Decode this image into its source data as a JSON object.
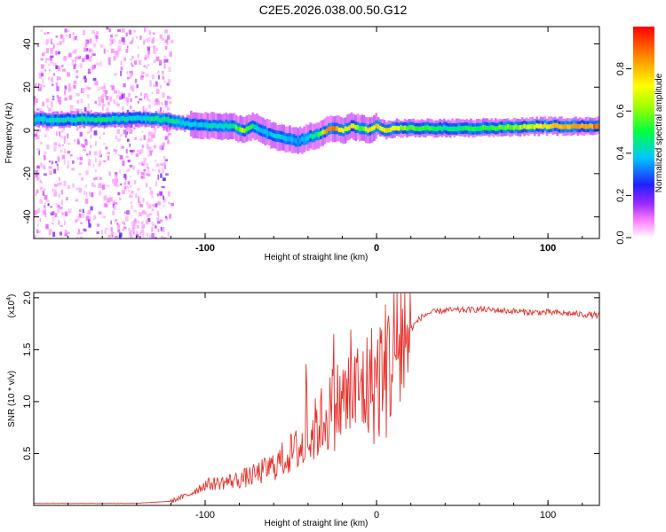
{
  "title": "C2E5.2026.038.00.50.G12",
  "chart_data": [
    {
      "type": "heatmap",
      "xlabel": "Height of straight line (km)",
      "ylabel": "Frequency (Hz)",
      "xlim": [
        -200,
        130
      ],
      "ylim": [
        -50,
        48
      ],
      "xticks": [
        -100,
        0,
        100
      ],
      "xtick_labels": [
        "-100",
        "0",
        "100"
      ],
      "yticks": [
        -40,
        -20,
        0,
        20,
        40
      ],
      "ytick_labels": [
        "-40",
        "-20",
        "0",
        "20",
        "40"
      ],
      "colorbar": {
        "label": "Normalized spectral amplitude",
        "range": [
          0,
          1
        ],
        "ticks": [
          0.0,
          0.2,
          0.4,
          0.6,
          0.8
        ],
        "tick_labels": [
          "0.0",
          "0.2",
          "0.4",
          "0.6",
          "0.8"
        ],
        "colors": [
          "#ffffff",
          "#ff80ff",
          "#8000ff",
          "#0000ff",
          "#00ffff",
          "#00ff00",
          "#ffff00",
          "#ff8000",
          "#ff0000"
        ]
      },
      "ridge": {
        "x": [
          -200,
          -180,
          -160,
          -140,
          -125,
          -110,
          -95,
          -85,
          -78,
          -72,
          -65,
          -58,
          -52,
          -46,
          -40,
          -35,
          -30,
          -25,
          -20,
          -15,
          -10,
          -5,
          0,
          5,
          10,
          20,
          40,
          60,
          80,
          100,
          130
        ],
        "freq": [
          5,
          5,
          5,
          5.5,
          5,
          3,
          2,
          2,
          0,
          2,
          -1,
          -3,
          -4,
          -5,
          -3,
          -2,
          0,
          1,
          0,
          2,
          1,
          0,
          2,
          0,
          1,
          1,
          1,
          1,
          1.5,
          2,
          2
        ],
        "amplitude": [
          0.45,
          0.45,
          0.5,
          0.45,
          0.5,
          0.4,
          0.45,
          0.5,
          0.7,
          0.45,
          0.4,
          0.45,
          0.4,
          0.35,
          0.45,
          0.5,
          0.9,
          0.95,
          0.7,
          0.8,
          0.55,
          0.8,
          0.8,
          0.8,
          0.75,
          0.6,
          0.5,
          0.55,
          0.65,
          0.8,
          0.95
        ]
      },
      "noise_region_xlim": [
        -200,
        -120
      ]
    },
    {
      "type": "line",
      "xlabel": "Height of straight line (km)",
      "ylabel": "SNR (10 * v/v)",
      "yscale_label": "(x10",
      "yscale_exponent": "4",
      "yscale_suffix": ")",
      "xlim": [
        -200,
        130
      ],
      "ylim": [
        0,
        2.05
      ],
      "xticks": [
        -100,
        0,
        100
      ],
      "xtick_labels": [
        "-100",
        "0",
        "100"
      ],
      "yticks": [
        0.5,
        1.0,
        1.5,
        2.0
      ],
      "ytick_labels": [
        "0.5",
        "1.0",
        "1.5",
        "2.0"
      ],
      "color": "#e8302a",
      "series": [
        {
          "name": "SNR",
          "x": [
            -200,
            -180,
            -160,
            -140,
            -120,
            -110,
            -100,
            -90,
            -80,
            -70,
            -60,
            -50,
            -40,
            -35,
            -30,
            -25,
            -20,
            -15,
            -10,
            -5,
            0,
            5,
            10,
            15,
            20,
            25,
            30,
            40,
            50,
            60,
            70,
            80,
            90,
            100,
            110,
            120,
            130
          ],
          "y": [
            0.02,
            0.02,
            0.02,
            0.02,
            0.04,
            0.1,
            0.2,
            0.22,
            0.25,
            0.3,
            0.38,
            0.5,
            0.6,
            0.75,
            0.85,
            0.95,
            1.0,
            1.05,
            1.1,
            1.15,
            1.2,
            1.3,
            1.5,
            1.6,
            1.7,
            1.8,
            1.85,
            1.88,
            1.88,
            1.89,
            1.88,
            1.87,
            1.86,
            1.86,
            1.85,
            1.84,
            1.83
          ]
        }
      ]
    }
  ],
  "colors": {
    "line": "#e8302a",
    "axis": "#000000",
    "background": "#ffffff"
  }
}
